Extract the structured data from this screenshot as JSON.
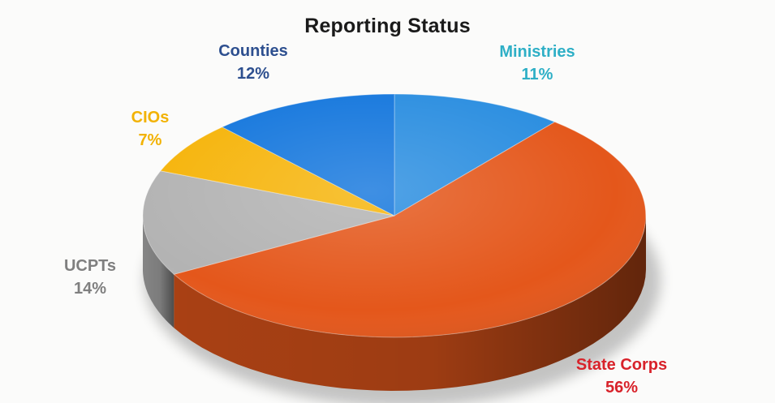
{
  "chart_data": {
    "type": "pie",
    "title": "Reporting Status",
    "three_d": true,
    "slices": [
      {
        "name": "Ministries",
        "value": 11,
        "pct_label": "11%",
        "color": "#2b8ee0",
        "label_color": "#2eafc6"
      },
      {
        "name": "State Corps",
        "value": 56,
        "pct_label": "56%",
        "color": "#e4571b",
        "label_color": "#d8222a"
      },
      {
        "name": "UCPTs",
        "value": 14,
        "pct_label": "14%",
        "color": "#b3b3b3",
        "label_color": "#7f7f7f"
      },
      {
        "name": "CIOs",
        "value": 7,
        "pct_label": "7%",
        "color": "#f6b40a",
        "label_color": "#f2b203"
      },
      {
        "name": "Counties",
        "value": 12,
        "pct_label": "12%",
        "color": "#1577dd",
        "label_color": "#2d4f8f"
      }
    ]
  }
}
